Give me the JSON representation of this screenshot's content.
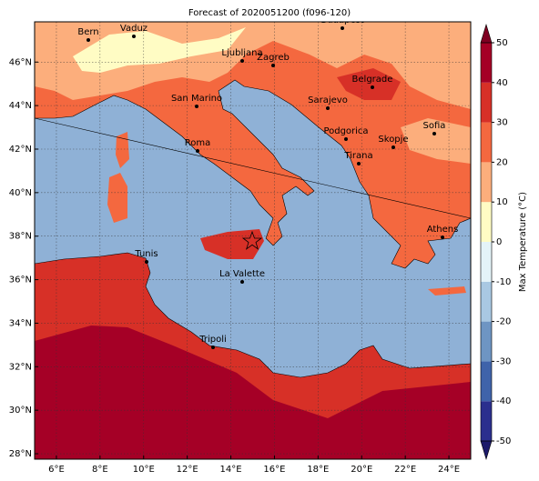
{
  "title": "Forecast of 2020051200 (f096-120)",
  "map": {
    "xlim": [
      5,
      25
    ],
    "ylim": [
      27.75,
      47.85
    ],
    "grid": true,
    "xticks": [
      {
        "value": 6,
        "label": "6°E"
      },
      {
        "value": 8,
        "label": "8°E"
      },
      {
        "value": 10,
        "label": "10°E"
      },
      {
        "value": 12,
        "label": "12°E"
      },
      {
        "value": 14,
        "label": "14°E"
      },
      {
        "value": 16,
        "label": "16°E"
      },
      {
        "value": 18,
        "label": "18°E"
      },
      {
        "value": 20,
        "label": "20°E"
      },
      {
        "value": 22,
        "label": "22°E"
      },
      {
        "value": 24,
        "label": "24°E"
      }
    ],
    "yticks": [
      {
        "value": 28,
        "label": "28°N"
      },
      {
        "value": 30,
        "label": "30°N"
      },
      {
        "value": 32,
        "label": "32°N"
      },
      {
        "value": 34,
        "label": "34°N"
      },
      {
        "value": 36,
        "label": "36°N"
      },
      {
        "value": 38,
        "label": "38°N"
      },
      {
        "value": 40,
        "label": "40°N"
      },
      {
        "value": 42,
        "label": "42°N"
      },
      {
        "value": 44,
        "label": "44°N"
      },
      {
        "value": 46,
        "label": "46°N"
      }
    ]
  },
  "cities": [
    "Bern",
    "Vaduz",
    "Budapest",
    "Ljubljana",
    "Zagreb",
    "San Marino",
    "Sarajevo",
    "Belgrade",
    "Sofia",
    "Podgorica",
    "Skopje",
    "Roma",
    "Tirana",
    "Athens",
    "Tunis",
    "La Valette",
    "Tripoli"
  ],
  "colorbar": {
    "label": "Max Temperature (°C)",
    "ticks": [
      -50,
      -40,
      -30,
      -20,
      -10,
      0,
      10,
      20,
      30,
      40,
      50
    ],
    "colors": [
      "#2b2f8e",
      "#3f63aa",
      "#6e95c3",
      "#a9c8e2",
      "#e4f3f8",
      "#fffcc4",
      "#fcae7c",
      "#f4683f",
      "#d73027",
      "#a50026"
    ],
    "under_color": "#1c1a6a",
    "over_color": "#7f0022"
  }
}
